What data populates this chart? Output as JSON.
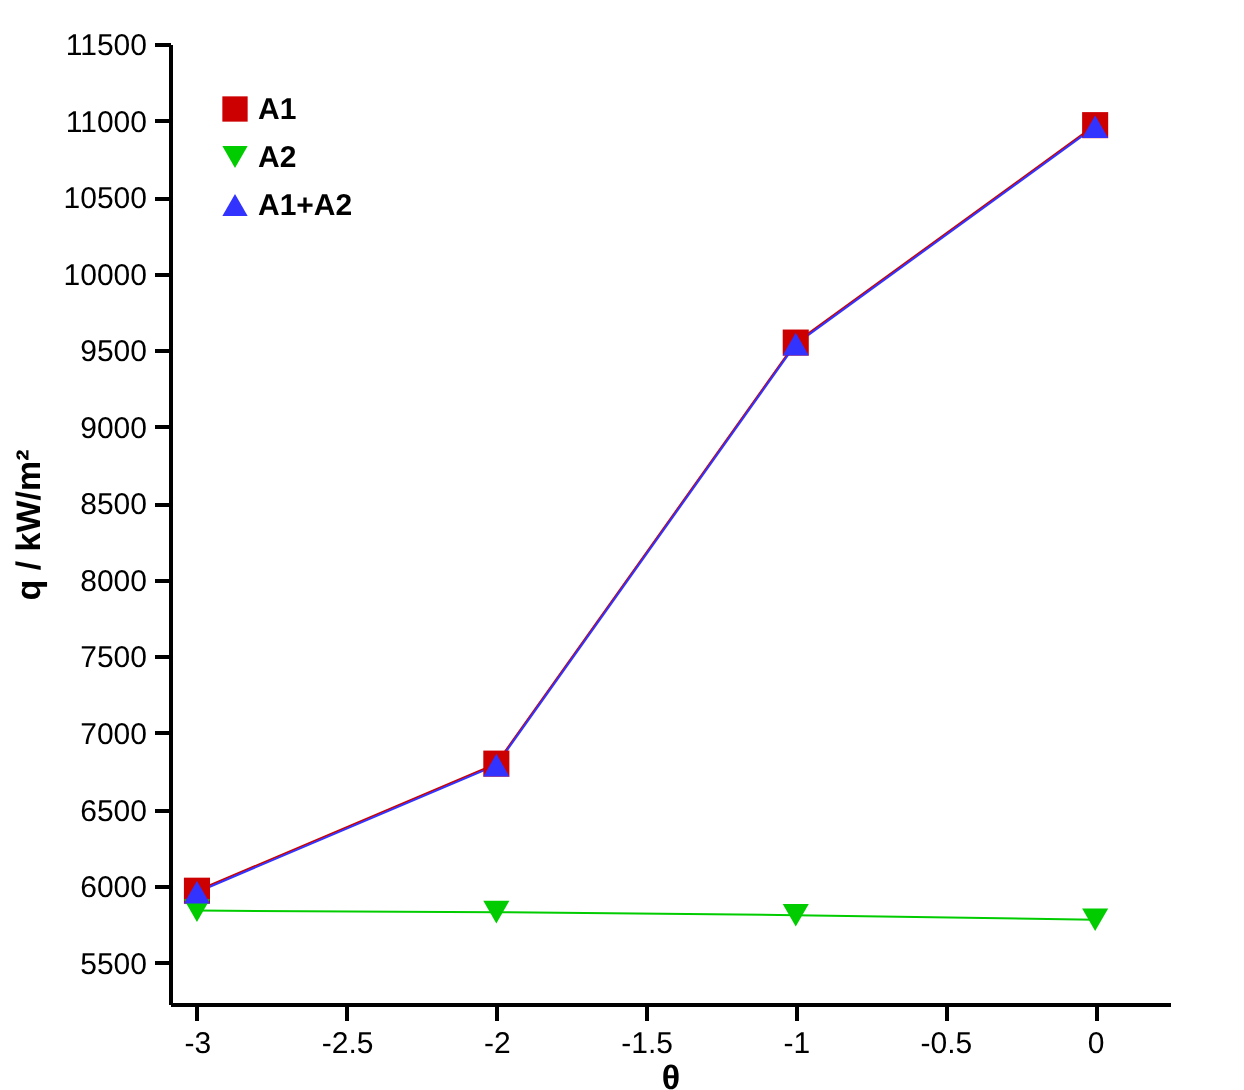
{
  "chart_data": {
    "type": "line",
    "xlabel": "θ",
    "ylabel": "q / kW/m²",
    "x": [
      -3,
      -2,
      -1,
      0
    ],
    "series": [
      {
        "name": "A1",
        "color": "#cc0000",
        "marker": "square",
        "values": [
          5970,
          6800,
          9550,
          10970
        ]
      },
      {
        "name": "A2",
        "color": "#00cc00",
        "marker": "triangle-down",
        "values": [
          5840,
          5830,
          5810,
          5780
        ]
      },
      {
        "name": "A1+A2",
        "color": "#3333ff",
        "marker": "triangle",
        "values": [
          5960,
          6790,
          9540,
          10960
        ]
      }
    ],
    "xlim": [
      -3.09,
      0.25
    ],
    "xticks": [
      -3,
      -2.5,
      -2,
      -1.5,
      -1,
      -0.5,
      0
    ],
    "ylim": [
      5230,
      11500
    ],
    "yticks": [
      5500,
      6000,
      6500,
      7000,
      7500,
      8000,
      8500,
      9000,
      9500,
      10000,
      10500,
      11000,
      11500
    ],
    "grid": false,
    "legend": "top left",
    "line_style": "solid"
  }
}
